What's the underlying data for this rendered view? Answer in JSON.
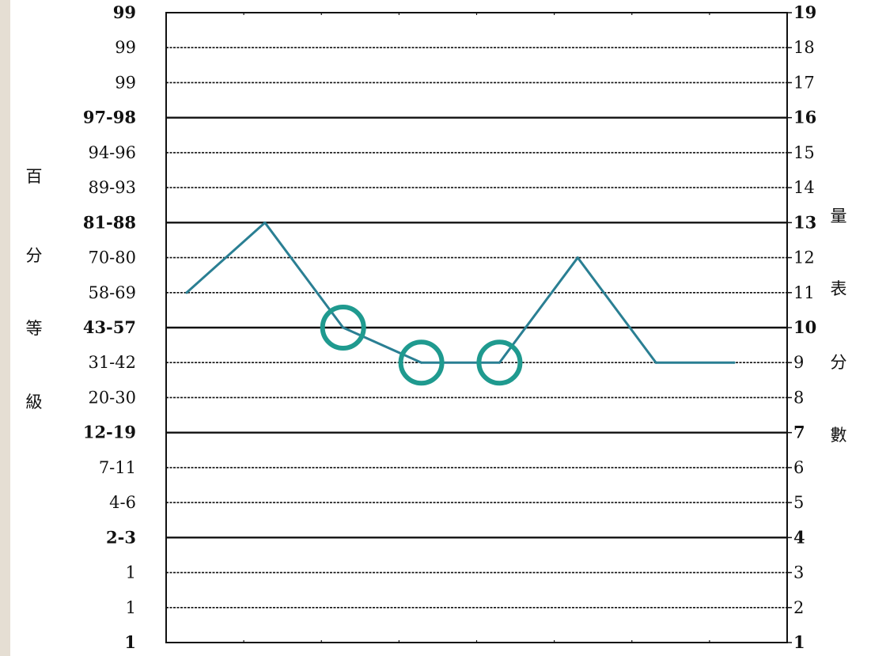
{
  "chart_data": {
    "type": "line",
    "ylabel_left": [
      "百",
      "分",
      "等",
      "級"
    ],
    "ylabel_right": [
      "量",
      "表",
      "分",
      "數"
    ],
    "ylim": [
      1,
      19
    ],
    "y_ticks": [
      {
        "score": 19,
        "percentile": "99",
        "bold": true
      },
      {
        "score": 18,
        "percentile": "99",
        "bold": false
      },
      {
        "score": 17,
        "percentile": "99",
        "bold": false
      },
      {
        "score": 16,
        "percentile": "97-98",
        "bold": true
      },
      {
        "score": 15,
        "percentile": "94-96",
        "bold": false
      },
      {
        "score": 14,
        "percentile": "89-93",
        "bold": false
      },
      {
        "score": 13,
        "percentile": "81-88",
        "bold": true
      },
      {
        "score": 12,
        "percentile": "70-80",
        "bold": false
      },
      {
        "score": 11,
        "percentile": "58-69",
        "bold": false
      },
      {
        "score": 10,
        "percentile": "43-57",
        "bold": true
      },
      {
        "score": 9,
        "percentile": "31-42",
        "bold": false
      },
      {
        "score": 8,
        "percentile": "20-30",
        "bold": false
      },
      {
        "score": 7,
        "percentile": "12-19",
        "bold": true
      },
      {
        "score": 6,
        "percentile": "7-11",
        "bold": false
      },
      {
        "score": 5,
        "percentile": "4-6",
        "bold": false
      },
      {
        "score": 4,
        "percentile": "2-3",
        "bold": true
      },
      {
        "score": 3,
        "percentile": "1",
        "bold": false
      },
      {
        "score": 2,
        "percentile": "1",
        "bold": false
      },
      {
        "score": 1,
        "percentile": "1",
        "bold": true
      }
    ],
    "right_tick_labels": [
      "19",
      "18",
      "17",
      "16",
      "15",
      "14",
      "13",
      "12",
      "11",
      "10",
      "9",
      "8",
      "7",
      "6",
      "5",
      "4",
      "3",
      "2",
      "1"
    ],
    "series": [
      {
        "color": "#2a7f93",
        "values": [
          11,
          13,
          10,
          9,
          9,
          12,
          9,
          9
        ]
      }
    ],
    "circled_point_indices": [
      2,
      3,
      4
    ],
    "circle_color": "#1f9a8f",
    "grid": true
  }
}
